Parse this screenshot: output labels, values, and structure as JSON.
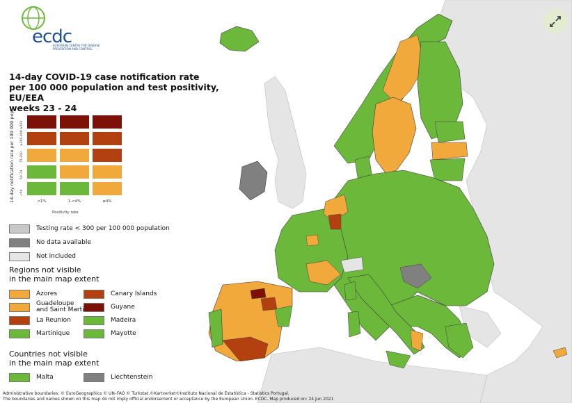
{
  "logo": {
    "text": "ecdc",
    "subtitle": "EUROPEAN CENTRE FOR DISEASE PREVENTION AND CONTROL"
  },
  "title": "14-day COVID-19 case notification rate\nper 100 000 population and test positivity, EU/EEA\nweeks 23 - 24",
  "matrix": {
    "ylabel": "14-day notification rate per 100 000 pop.",
    "xlabel": "Positivity rate",
    "row_ticks": [
      "≥500",
      "≥200-499",
      "75-200",
      "50-74",
      "<50"
    ],
    "col_ticks": [
      "<1%",
      "1-<4%",
      "≥4%"
    ],
    "rows": [
      [
        "#7b1107",
        "#7b1107",
        "#7b1107"
      ],
      [
        "#b3410f",
        "#b3410f",
        "#b3410f"
      ],
      [
        "#f2a93b",
        "#f2a93b",
        "#b3410f"
      ],
      [
        "#6cb83a",
        "#f2a93b",
        "#f2a93b"
      ],
      [
        "#6cb83a",
        "#6cb83a",
        "#f2a93b"
      ]
    ]
  },
  "legend": {
    "status": [
      {
        "label": "Testing rate < 300 per 100 000 population",
        "color": "#c8c8c8"
      },
      {
        "label": "No data available",
        "color": "#808080"
      },
      {
        "label": "Not included",
        "color": "#e5e5e5"
      }
    ],
    "regions_title": "Regions not visible\nin the main map extent",
    "regions": [
      {
        "label": "Azores",
        "color": "#f2a93b"
      },
      {
        "label": "Canary Islands",
        "color": "#b3410f"
      },
      {
        "label": "Guadeloupe\nand Saint Martin",
        "color": "#f2a93b"
      },
      {
        "label": "Guyane",
        "color": "#7b1107"
      },
      {
        "label": "La Reunion",
        "color": "#b3410f"
      },
      {
        "label": "Madeira",
        "color": "#6cb83a"
      },
      {
        "label": "Martinique",
        "color": "#6cb83a"
      },
      {
        "label": "Mayotte",
        "color": "#6cb83a"
      }
    ],
    "countries_title": "Countries not visible\nin the main map extent",
    "countries": [
      {
        "label": "Malta",
        "color": "#6cb83a"
      },
      {
        "label": "Liechtenstein",
        "color": "#808080"
      }
    ]
  },
  "footer": "Administrative boundaries: © EuroGeographics © UN–FAO © Turkstat.©Kartverket©Instituto Nacional de Estatística - Statistics Portugal.\nThe boundaries and names shown on this map do not imply official endorsement or acceptance by the European Union. ECDC. Map produced on: 24 Jun 2021",
  "colors": {
    "green": "#6cb83a",
    "orange": "#f2a93b",
    "red": "#b3410f",
    "darkred": "#7b1107",
    "grey_nodata": "#808080",
    "not_included": "#e5e5e5",
    "sea": "#ffffff"
  },
  "icons": {
    "expand": "expand-arrows-icon"
  }
}
